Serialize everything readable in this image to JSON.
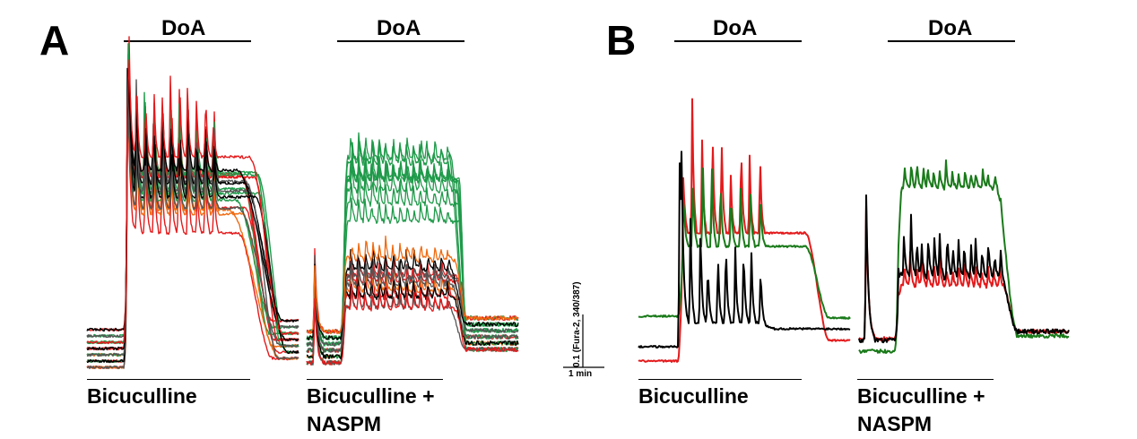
{
  "panels": {
    "A": {
      "letter": "A",
      "doa": "DoA",
      "left_label": "Bicuculline",
      "right_label_1": "Bicuculline +",
      "right_label_2": "NASPM"
    },
    "B": {
      "letter": "B",
      "doa": "DoA",
      "left_label": "Bicuculline",
      "right_label_1": "Bicuculline +",
      "right_label_2": "NASPM"
    }
  },
  "scale_bar": {
    "y_label": "0.1 (Fura-2, 340/387)",
    "x_label": "1 min"
  },
  "colors": {
    "red": "#e41a1c",
    "orange": "#f06a10",
    "green": "#1f9a4a",
    "dark_green": "#1a7a1a",
    "black": "#000000",
    "gray": "#555555"
  },
  "chart_data": [
    {
      "type": "line",
      "panel": "A",
      "condition": "Bicuculline",
      "xlabel": "",
      "ylabel": "",
      "series": [
        {
          "color": "red",
          "count": 6
        },
        {
          "color": "orange",
          "count": 2
        },
        {
          "color": "green",
          "count": 5
        },
        {
          "color": "black",
          "count": 3
        },
        {
          "color": "gray",
          "count": 3
        }
      ]
    },
    {
      "type": "line",
      "panel": "A",
      "condition": "Bicuculline + NASPM",
      "xlabel": "",
      "ylabel": "",
      "series": [
        {
          "color": "red",
          "count": 4
        },
        {
          "color": "orange",
          "count": 2
        },
        {
          "color": "green",
          "count": 8
        },
        {
          "color": "black",
          "count": 2
        },
        {
          "color": "gray",
          "count": 3
        }
      ]
    },
    {
      "type": "line",
      "panel": "B",
      "condition": "Bicuculline",
      "xlabel": "",
      "ylabel": "",
      "series": [
        {
          "color": "red",
          "count": 1
        },
        {
          "color": "dark_green",
          "count": 1
        },
        {
          "color": "black",
          "count": 1
        }
      ]
    },
    {
      "type": "line",
      "panel": "B",
      "condition": "Bicuculline + NASPM",
      "xlabel": "",
      "ylabel": "",
      "series": [
        {
          "color": "red",
          "count": 1
        },
        {
          "color": "dark_green",
          "count": 1
        },
        {
          "color": "black",
          "count": 1
        }
      ]
    }
  ]
}
